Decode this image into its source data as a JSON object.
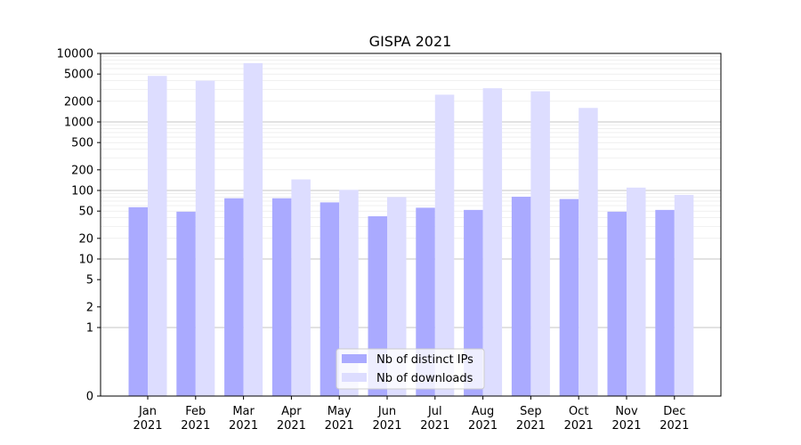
{
  "chart_data": {
    "type": "bar",
    "title": "GISPA 2021",
    "xlabel": "",
    "ylabel": "",
    "y_scale": "symlog",
    "ylim": [
      0,
      10000
    ],
    "grid": "horizontal",
    "legend_position": "lower-center",
    "categories": [
      "Jan\n2021",
      "Feb\n2021",
      "Mar\n2021",
      "Apr\n2021",
      "May\n2021",
      "Jun\n2021",
      "Jul\n2021",
      "Aug\n2021",
      "Sep\n2021",
      "Oct\n2021",
      "Nov\n2021",
      "Dec\n2021"
    ],
    "y_ticks": [
      0,
      1,
      2,
      5,
      10,
      20,
      50,
      100,
      200,
      500,
      1000,
      2000,
      5000,
      10000
    ],
    "series": [
      {
        "name": "Nb of distinct IPs",
        "color": "#aaaaff",
        "values": [
          57,
          49,
          77,
          77,
          67,
          42,
          56,
          52,
          81,
          75,
          49,
          52
        ]
      },
      {
        "name": "Nb of downloads",
        "color": "#ddddff",
        "values": [
          4700,
          4000,
          7200,
          145,
          102,
          80,
          2500,
          3100,
          2800,
          1600,
          110,
          86
        ]
      }
    ]
  }
}
